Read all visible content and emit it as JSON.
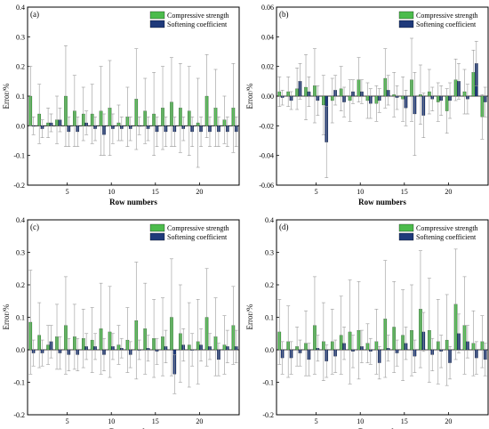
{
  "colors": {
    "compressive": "#4cbb4c",
    "softening": "#1f3a7a",
    "error_bar": "#9a9a9a",
    "axis": "#000000"
  },
  "chart_data": [
    {
      "type": "bar",
      "panel_label": "(a)",
      "xlabel": "Row numbers",
      "ylabel": "Error/%",
      "ylim": [
        -0.2,
        0.4
      ],
      "yticks": [
        "-0.2",
        "-0.1",
        "0.0",
        "0.1",
        "0.2",
        "0.3",
        "0.4"
      ],
      "xticks": [
        "5",
        "10",
        "15",
        "20"
      ],
      "legend_position": "top-right",
      "categories": [
        1,
        2,
        3,
        4,
        5,
        6,
        7,
        8,
        9,
        10,
        11,
        12,
        13,
        14,
        15,
        16,
        17,
        18,
        19,
        20,
        21,
        22,
        23,
        24
      ],
      "series": [
        {
          "name": "Compressive strength",
          "values": [
            0.1,
            0.04,
            0.01,
            0.02,
            0.1,
            0.05,
            0.04,
            0.04,
            0.05,
            0.06,
            0.01,
            0.03,
            0.09,
            0.05,
            0.04,
            0.06,
            0.08,
            0.06,
            0.05,
            0.01,
            0.1,
            0.06,
            0.02,
            0.06
          ],
          "errors": [
            0.1,
            0.1,
            0.05,
            0.08,
            0.17,
            0.12,
            0.09,
            0.1,
            0.15,
            0.16,
            0.06,
            0.1,
            0.17,
            0.11,
            0.14,
            0.14,
            0.15,
            0.15,
            0.15,
            0.15,
            0.14,
            0.13,
            0.08,
            0.15
          ]
        },
        {
          "name": "Softening coefficient",
          "values": [
            0.0,
            -0.01,
            0.01,
            0.02,
            -0.02,
            -0.02,
            0.01,
            -0.01,
            -0.03,
            -0.01,
            -0.01,
            -0.01,
            0.0,
            -0.01,
            -0.02,
            -0.02,
            -0.02,
            -0.01,
            -0.02,
            -0.02,
            -0.02,
            -0.02,
            -0.02,
            -0.02
          ],
          "errors": [
            0.03,
            0.03,
            0.03,
            0.04,
            0.05,
            0.05,
            0.04,
            0.04,
            0.07,
            0.05,
            0.04,
            0.04,
            0.03,
            0.04,
            0.05,
            0.05,
            0.05,
            0.04,
            0.05,
            0.05,
            0.05,
            0.05,
            0.05,
            0.05
          ]
        }
      ]
    },
    {
      "type": "bar",
      "panel_label": "(b)",
      "xlabel": "Row numbers",
      "ylabel": "Error/%",
      "ylim": [
        -0.06,
        0.06
      ],
      "yticks": [
        "-0.06",
        "-0.04",
        "-0.02",
        "0.00",
        "0.02",
        "0.04",
        "0.06"
      ],
      "xticks": [
        "5",
        "10",
        "15",
        "20"
      ],
      "legend_position": "top-right",
      "categories": [
        1,
        2,
        3,
        4,
        5,
        6,
        7,
        8,
        9,
        10,
        11,
        12,
        13,
        14,
        15,
        16,
        17,
        18,
        19,
        20,
        21,
        22,
        23,
        24
      ],
      "series": [
        {
          "name": "Compressive strength",
          "values": [
            0.003,
            0.003,
            0.005,
            0.006,
            0.007,
            -0.006,
            -0.003,
            0.005,
            -0.003,
            0.011,
            -0.003,
            -0.005,
            0.012,
            0.001,
            -0.002,
            0.011,
            0.001,
            0.003,
            -0.004,
            -0.01,
            0.011,
            0.003,
            0.016,
            -0.014
          ],
          "errors": [
            0.01,
            0.01,
            0.014,
            0.022,
            0.025,
            0.02,
            0.015,
            0.015,
            0.014,
            0.015,
            0.012,
            0.012,
            0.02,
            0.015,
            0.015,
            0.028,
            0.02,
            0.015,
            0.013,
            0.015,
            0.014,
            0.015,
            0.015,
            0.015
          ]
        },
        {
          "name": "Softening coefficient",
          "values": [
            -0.001,
            -0.003,
            0.01,
            0.003,
            -0.003,
            -0.031,
            0.004,
            -0.004,
            0.003,
            0.003,
            -0.005,
            -0.003,
            0.004,
            -0.001,
            -0.008,
            -0.012,
            -0.013,
            -0.002,
            -0.003,
            -0.003,
            0.01,
            -0.002,
            0.022,
            -0.004
          ],
          "errors": [
            0.005,
            0.006,
            0.012,
            0.01,
            0.01,
            0.024,
            0.01,
            0.01,
            0.008,
            0.008,
            0.01,
            0.008,
            0.01,
            0.008,
            0.012,
            0.028,
            0.015,
            0.008,
            0.01,
            0.012,
            0.012,
            0.01,
            0.015,
            0.01
          ]
        }
      ]
    },
    {
      "type": "bar",
      "panel_label": "(c)",
      "xlabel": "Row numbers",
      "ylabel": "Error/%",
      "ylim": [
        -0.2,
        0.4
      ],
      "yticks": [
        "-0.2",
        "-0.1",
        "0.0",
        "0.1",
        "0.2",
        "0.3",
        "0.4"
      ],
      "xticks": [
        "5",
        "10",
        "15",
        "20"
      ],
      "legend_position": "top-right",
      "categories": [
        1,
        2,
        3,
        4,
        5,
        6,
        7,
        8,
        9,
        10,
        11,
        12,
        13,
        14,
        15,
        16,
        17,
        18,
        19,
        20,
        21,
        22,
        23,
        24
      ],
      "series": [
        {
          "name": "Compressive strength",
          "values": [
            0.085,
            0.045,
            0.015,
            0.04,
            0.075,
            0.04,
            0.035,
            0.03,
            0.065,
            0.055,
            0.015,
            0.03,
            0.09,
            0.065,
            0.035,
            0.04,
            0.1,
            0.05,
            0.015,
            0.025,
            0.1,
            0.04,
            0.015,
            0.075
          ],
          "errors": [
            0.16,
            0.1,
            0.06,
            0.1,
            0.15,
            0.1,
            0.09,
            0.1,
            0.14,
            0.14,
            0.06,
            0.1,
            0.18,
            0.14,
            0.12,
            0.12,
            0.18,
            0.15,
            0.13,
            0.13,
            0.15,
            0.12,
            0.09,
            0.12
          ]
        },
        {
          "name": "Softening coefficient",
          "values": [
            -0.01,
            -0.01,
            0.025,
            -0.01,
            -0.015,
            -0.015,
            0.01,
            0.01,
            -0.015,
            0.01,
            0.005,
            -0.015,
            0.0,
            0.005,
            -0.005,
            0.01,
            -0.075,
            0.015,
            0.0,
            0.015,
            0.01,
            -0.03,
            0.01,
            0.01
          ],
          "errors": [
            0.04,
            0.04,
            0.05,
            0.05,
            0.05,
            0.05,
            0.04,
            0.04,
            0.05,
            0.04,
            0.03,
            0.04,
            0.03,
            0.04,
            0.04,
            0.05,
            0.06,
            0.05,
            0.05,
            0.05,
            0.04,
            0.05,
            0.05,
            0.05
          ]
        }
      ]
    },
    {
      "type": "bar",
      "panel_label": "(d)",
      "xlabel": "Row numbers",
      "ylabel": "Error/%",
      "ylim": [
        -0.2,
        0.4
      ],
      "yticks": [
        "-0.2",
        "-0.1",
        "0.0",
        "0.1",
        "0.2",
        "0.3",
        "0.4"
      ],
      "xticks": [
        "5",
        "10",
        "15",
        "20"
      ],
      "legend_position": "top-right",
      "categories": [
        1,
        2,
        3,
        4,
        5,
        6,
        7,
        8,
        9,
        10,
        11,
        12,
        13,
        14,
        15,
        16,
        17,
        18,
        19,
        20,
        21,
        22,
        23,
        24
      ],
      "series": [
        {
          "name": "Compressive strength",
          "values": [
            0.055,
            0.025,
            0.01,
            0.02,
            0.075,
            0.025,
            0.025,
            0.045,
            0.055,
            0.06,
            0.02,
            0.025,
            0.095,
            0.07,
            0.045,
            0.06,
            0.125,
            0.06,
            0.025,
            0.03,
            0.14,
            0.075,
            0.02,
            0.025
          ],
          "errors": [
            0.1,
            0.11,
            0.06,
            0.1,
            0.15,
            0.12,
            0.1,
            0.12,
            0.16,
            0.15,
            0.06,
            0.1,
            0.18,
            0.14,
            0.14,
            0.14,
            0.18,
            0.16,
            0.13,
            0.14,
            0.17,
            0.15,
            0.1,
            0.08
          ]
        },
        {
          "name": "Softening coefficient",
          "values": [
            -0.025,
            -0.025,
            -0.01,
            -0.03,
            0.005,
            -0.035,
            -0.02,
            0.02,
            -0.005,
            0.01,
            -0.005,
            -0.04,
            0.005,
            -0.01,
            0.02,
            -0.02,
            0.055,
            -0.015,
            -0.005,
            -0.04,
            0.05,
            0.025,
            -0.025,
            -0.03
          ],
          "errors": [
            0.05,
            0.05,
            0.04,
            0.05,
            0.04,
            0.05,
            0.05,
            0.05,
            0.05,
            0.05,
            0.04,
            0.05,
            0.04,
            0.04,
            0.05,
            0.05,
            0.06,
            0.05,
            0.05,
            0.05,
            0.06,
            0.05,
            0.05,
            0.05
          ]
        }
      ]
    }
  ]
}
